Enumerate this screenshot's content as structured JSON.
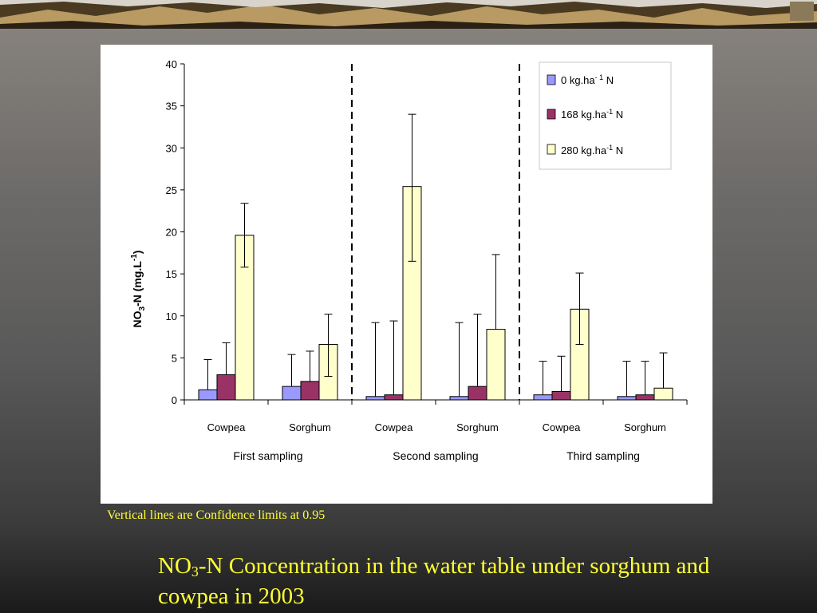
{
  "slide": {
    "title_prefix": "NO",
    "title_sub": "3",
    "title_suffix": "-N Concentration in the water table under sorghum and cowpea in 2003",
    "note": "Vertical lines are Confidence limits at 0.95"
  },
  "colors": {
    "series_0": "#9999ff",
    "series_168": "#993366",
    "series_280": "#ffffcc",
    "title_text": "#ffff33"
  },
  "chart_data": {
    "type": "bar",
    "ylabel": "NO3-N (mg.L-1)",
    "ylabel_parts": {
      "a": "NO",
      "b": "3",
      "c": "-N (mg.L",
      "d": "-1",
      "e": ")"
    },
    "ylim": [
      0,
      40
    ],
    "yticks": [
      0,
      5,
      10,
      15,
      20,
      25,
      30,
      35,
      40
    ],
    "grid": false,
    "legend_position": "top-right",
    "groups": [
      {
        "label": "First sampling",
        "categories": [
          "Cowpea",
          "Sorghum"
        ]
      },
      {
        "label": "Second sampling",
        "categories": [
          "Cowpea",
          "Sorghum"
        ]
      },
      {
        "label": "Third sampling",
        "categories": [
          "Cowpea",
          "Sorghum"
        ]
      }
    ],
    "categories": [
      "Cowpea",
      "Sorghum",
      "Cowpea",
      "Sorghum",
      "Cowpea",
      "Sorghum"
    ],
    "series": [
      {
        "name": "0 kg.ha-1 N",
        "legend_parts": {
          "pre": "0 kg.ha",
          "sup": "- 1",
          "post": " N"
        },
        "values": [
          1.2,
          1.6,
          0.4,
          0.4,
          0.6,
          0.4
        ],
        "err_high": [
          4.8,
          5.4,
          9.2,
          9.2,
          4.6,
          4.6
        ]
      },
      {
        "name": "168 kg.ha-1 N",
        "legend_parts": {
          "pre": "168 kg.ha",
          "sup": "-1",
          "post": " N"
        },
        "values": [
          3.0,
          2.2,
          0.6,
          1.6,
          1.0,
          0.6
        ],
        "err_high": [
          6.8,
          5.8,
          9.4,
          10.2,
          5.2,
          4.6
        ]
      },
      {
        "name": "280 kg.ha-1 N",
        "legend_parts": {
          "pre": "280 kg.ha",
          "sup": "-1",
          "post": " N"
        },
        "values": [
          19.6,
          6.6,
          25.4,
          8.4,
          10.8,
          1.4
        ],
        "err_low": [
          15.8,
          2.8,
          16.5,
          null,
          6.6,
          null
        ],
        "err_high": [
          23.4,
          10.2,
          34.0,
          17.3,
          15.1,
          5.6
        ]
      }
    ],
    "annotations": [
      "Vertical dashed lines separate sampling dates"
    ]
  }
}
